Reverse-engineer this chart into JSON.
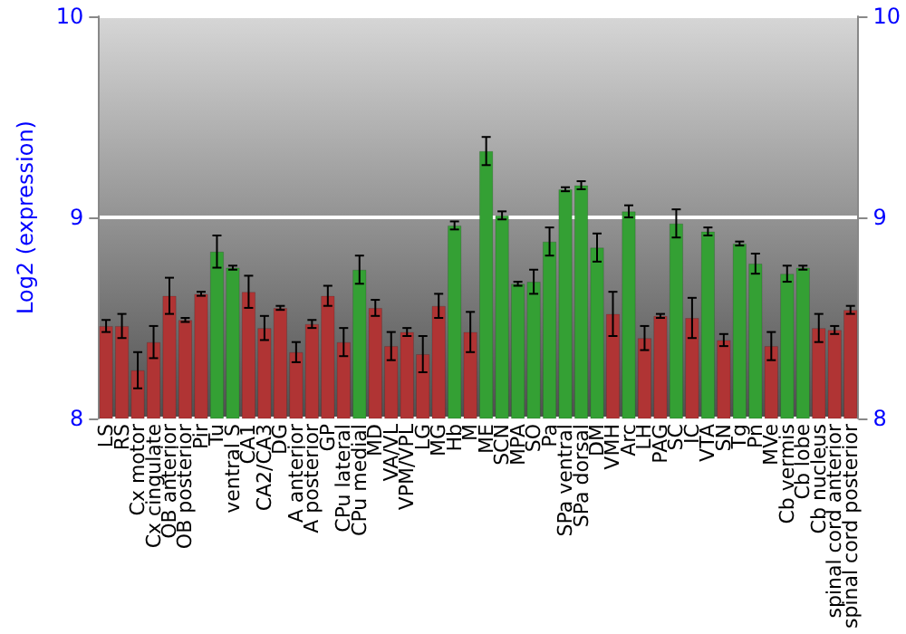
{
  "chart_data": {
    "type": "bar",
    "ylabel": "Log2 (expression)",
    "categories": [
      "LS",
      "RS",
      "Cx motor",
      "Cx cingulate",
      "OB anterior",
      "OB posterior",
      "Pir",
      "Tu",
      "ventral S",
      "CA1",
      "CA2/CA3",
      "DG",
      "A anterior",
      "A posterior",
      "GP",
      "CPu lateral",
      "CPu medial",
      "MD",
      "VA/VL",
      "VPM/VPL",
      "LG",
      "MG",
      "Hb",
      "M",
      "ME",
      "SCN",
      "MPA",
      "SO",
      "Pa",
      "SPa ventral",
      "SPa dorsal",
      "DM",
      "VMH",
      "Arc",
      "LH",
      "PAG",
      "SC",
      "IC",
      "VTA",
      "SN",
      "Tg",
      "Pn",
      "MVe",
      "Cb vermis",
      "Cb lobe",
      "Cb nucleus",
      "spinal cord anterior",
      "spinal cord posterior"
    ],
    "values": [
      8.46,
      8.46,
      8.24,
      8.38,
      8.61,
      8.49,
      8.62,
      8.83,
      8.75,
      8.63,
      8.45,
      8.55,
      8.33,
      8.47,
      8.61,
      8.38,
      8.74,
      8.55,
      8.36,
      8.43,
      8.32,
      8.56,
      8.96,
      8.43,
      9.33,
      9.01,
      8.67,
      8.68,
      8.88,
      9.14,
      9.16,
      8.85,
      8.52,
      9.03,
      8.4,
      8.51,
      8.97,
      8.5,
      8.93,
      8.39,
      8.87,
      8.77,
      8.36,
      8.72,
      8.75,
      8.45,
      8.44,
      8.54
    ],
    "errors": [
      0.03,
      0.06,
      0.09,
      0.08,
      0.09,
      0.01,
      0.01,
      0.08,
      0.01,
      0.08,
      0.06,
      0.01,
      0.05,
      0.02,
      0.05,
      0.07,
      0.07,
      0.04,
      0.07,
      0.02,
      0.09,
      0.06,
      0.02,
      0.1,
      0.07,
      0.02,
      0.01,
      0.06,
      0.07,
      0.01,
      0.02,
      0.07,
      0.11,
      0.03,
      0.06,
      0.01,
      0.07,
      0.1,
      0.02,
      0.03,
      0.01,
      0.05,
      0.07,
      0.04,
      0.01,
      0.07,
      0.02,
      0.02
    ],
    "colors": [
      "#b03434",
      "#b03434",
      "#b03434",
      "#b03434",
      "#b03434",
      "#b03434",
      "#b03434",
      "#34a034",
      "#34a034",
      "#b03434",
      "#b03434",
      "#b03434",
      "#b03434",
      "#b03434",
      "#b03434",
      "#b03434",
      "#34a034",
      "#b03434",
      "#b03434",
      "#b03434",
      "#b03434",
      "#b03434",
      "#34a034",
      "#b03434",
      "#34a034",
      "#34a034",
      "#34a034",
      "#34a034",
      "#34a034",
      "#34a034",
      "#34a034",
      "#34a034",
      "#b03434",
      "#34a034",
      "#b03434",
      "#b03434",
      "#34a034",
      "#b03434",
      "#34a034",
      "#b03434",
      "#34a034",
      "#34a034",
      "#b03434",
      "#34a034",
      "#34a034",
      "#b03434",
      "#b03434",
      "#b03434"
    ],
    "ylim": [
      8,
      10
    ],
    "yticks": [
      8,
      9,
      10
    ],
    "y2lim": [
      8,
      10
    ],
    "y2ticks": [
      8,
      9,
      10
    ],
    "grid": "y"
  }
}
